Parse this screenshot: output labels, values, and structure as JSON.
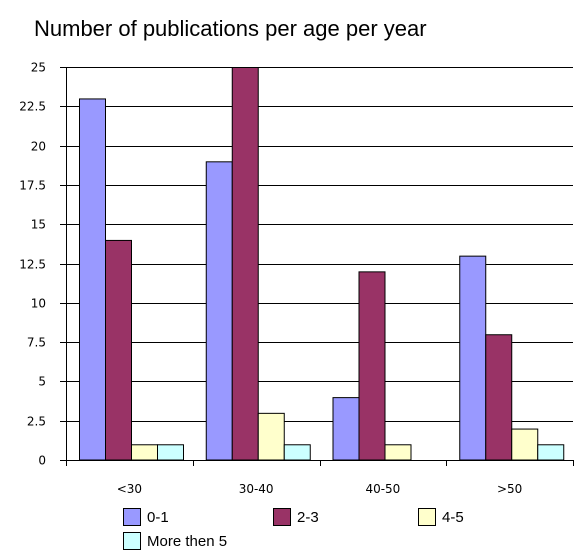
{
  "chart_data": {
    "type": "bar",
    "title": "Number of publications per age per year",
    "xlabel": "",
    "ylabel": "",
    "categories": [
      "<30",
      "30-40",
      "40-50",
      ">50"
    ],
    "ylim": [
      0,
      25
    ],
    "yticks": [
      0,
      2.5,
      5,
      7.5,
      10,
      12.5,
      15,
      17.5,
      20,
      22.5,
      25
    ],
    "ytick_labels": [
      "0",
      "2.5",
      "5",
      "7.5",
      "10",
      "12.5",
      "15",
      "17.5",
      "20",
      "22.5",
      "25"
    ],
    "grid": true,
    "legend_position": "bottom",
    "series": [
      {
        "name": "0-1",
        "values": [
          23,
          19,
          4,
          13
        ],
        "color": "#9999ff"
      },
      {
        "name": "2-3",
        "values": [
          14,
          25,
          12,
          8
        ],
        "color": "#993366"
      },
      {
        "name": "4-5",
        "values": [
          1,
          3,
          1,
          2
        ],
        "color": "#ffffcc"
      },
      {
        "name": "More then 5",
        "values": [
          1,
          1,
          0,
          1
        ],
        "color": "#ccffff"
      }
    ]
  }
}
